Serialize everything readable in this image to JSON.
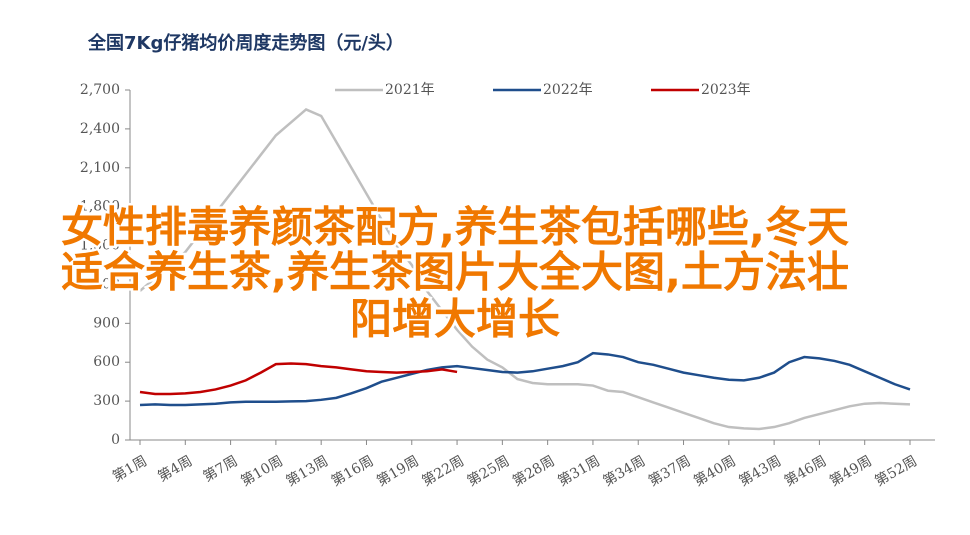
{
  "chart_data": {
    "type": "line",
    "title": "全国7Kg仔猪均价周度走势图（元/头）",
    "categories": [
      "第1周",
      null,
      null,
      "第4周",
      null,
      null,
      "第7周",
      null,
      null,
      "第10周",
      null,
      null,
      "第13周",
      null,
      null,
      "第16周",
      null,
      null,
      "第19周",
      null,
      null,
      "第22周",
      null,
      null,
      "第25周",
      null,
      null,
      "第28周",
      null,
      null,
      "第31周",
      null,
      null,
      "第34周",
      null,
      null,
      "第37周",
      null,
      null,
      "第40周",
      null,
      null,
      "第43周",
      null,
      null,
      "第46周",
      null,
      null,
      "第49周",
      null,
      null,
      "第52周"
    ],
    "series": [
      {
        "name": "2021年",
        "color": "#bfbfbf",
        "values": [
          1150,
          1250,
          1350,
          1450,
          1600,
          1750,
          1900,
          2050,
          2200,
          2350,
          2450,
          2550,
          2500,
          2300,
          2100,
          1900,
          1700,
          1500,
          1350,
          1150,
          1000,
          850,
          720,
          620,
          560,
          470,
          440,
          430,
          430,
          430,
          420,
          380,
          370,
          330,
          290,
          250,
          210,
          170,
          130,
          100,
          90,
          85,
          100,
          130,
          170,
          200,
          230,
          260,
          280,
          285,
          280,
          275
        ]
      },
      {
        "name": "2022年",
        "color": "#1f4e8c",
        "values": [
          270,
          275,
          270,
          270,
          275,
          280,
          290,
          295,
          295,
          295,
          298,
          300,
          310,
          325,
          360,
          400,
          450,
          480,
          510,
          540,
          560,
          570,
          555,
          540,
          525,
          520,
          530,
          550,
          570,
          600,
          670,
          660,
          640,
          600,
          580,
          550,
          520,
          500,
          480,
          465,
          460,
          480,
          520,
          600,
          640,
          630,
          610,
          580,
          530,
          480,
          430,
          390
        ]
      },
      {
        "name": "2023年",
        "color": "#c00000",
        "values": [
          370,
          355,
          355,
          360,
          370,
          390,
          420,
          460,
          520,
          585,
          590,
          585,
          570,
          560,
          545,
          530,
          525,
          520,
          525,
          530,
          545,
          525,
          null,
          null,
          null,
          null,
          null,
          null,
          null,
          null,
          null,
          null,
          null,
          null,
          null,
          null,
          null,
          null,
          null,
          null,
          null,
          null,
          null,
          null,
          null,
          null,
          null,
          null,
          null,
          null,
          null,
          null
        ]
      }
    ],
    "ylim": [
      0,
      2700
    ],
    "yticks": [
      0,
      300,
      600,
      900,
      {
        "value": 1200,
        "label": "1,200"
      },
      {
        "value": 1500,
        "label": "1,500"
      },
      {
        "value": 1800,
        "label": "1,800"
      },
      {
        "value": 2100,
        "label": "2,100"
      },
      {
        "value": 2400,
        "label": "2,400"
      },
      {
        "value": 2700,
        "label": "2,700"
      }
    ],
    "overlay_text": [
      "女性排毒养颜茶配方,养生茶包括哪些,冬天",
      "适合养生茶,养生茶图片大全大图,土方法壮",
      "阳增大增长"
    ]
  }
}
